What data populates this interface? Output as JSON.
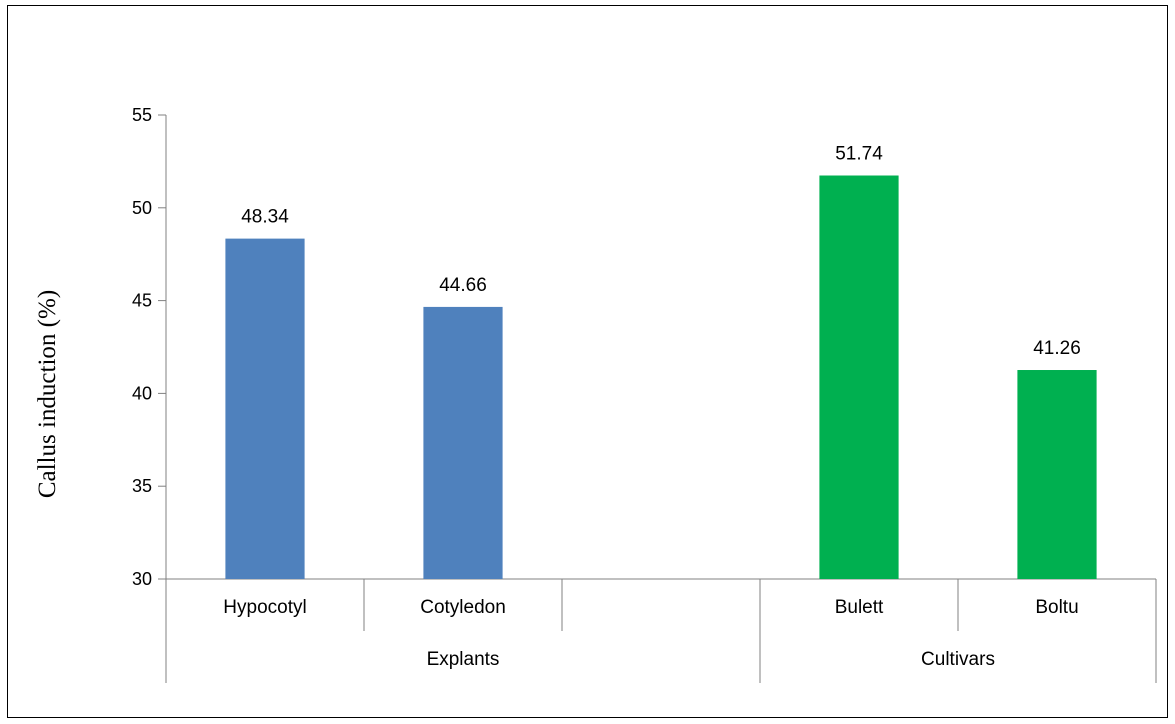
{
  "chart_data": {
    "type": "bar",
    "ylabel": "Callus induction (%)",
    "ylim": [
      30,
      55
    ],
    "yticks": [
      30,
      35,
      40,
      45,
      50,
      55
    ],
    "grid": false,
    "legend": "none",
    "groups": [
      {
        "label": "Explants",
        "slots": 3,
        "color": "#4f81bd",
        "categories": [
          "Hypocotyl",
          "Cotyledon"
        ],
        "values": [
          48.34,
          44.66
        ],
        "value_labels": [
          "48.34",
          "44.66"
        ]
      },
      {
        "label": "Cultivars",
        "slots": 2,
        "color": "#00b050",
        "categories": [
          "Bulett",
          "Boltu"
        ],
        "values": [
          51.74,
          41.26
        ],
        "value_labels": [
          "51.74",
          "41.26"
        ]
      }
    ]
  }
}
